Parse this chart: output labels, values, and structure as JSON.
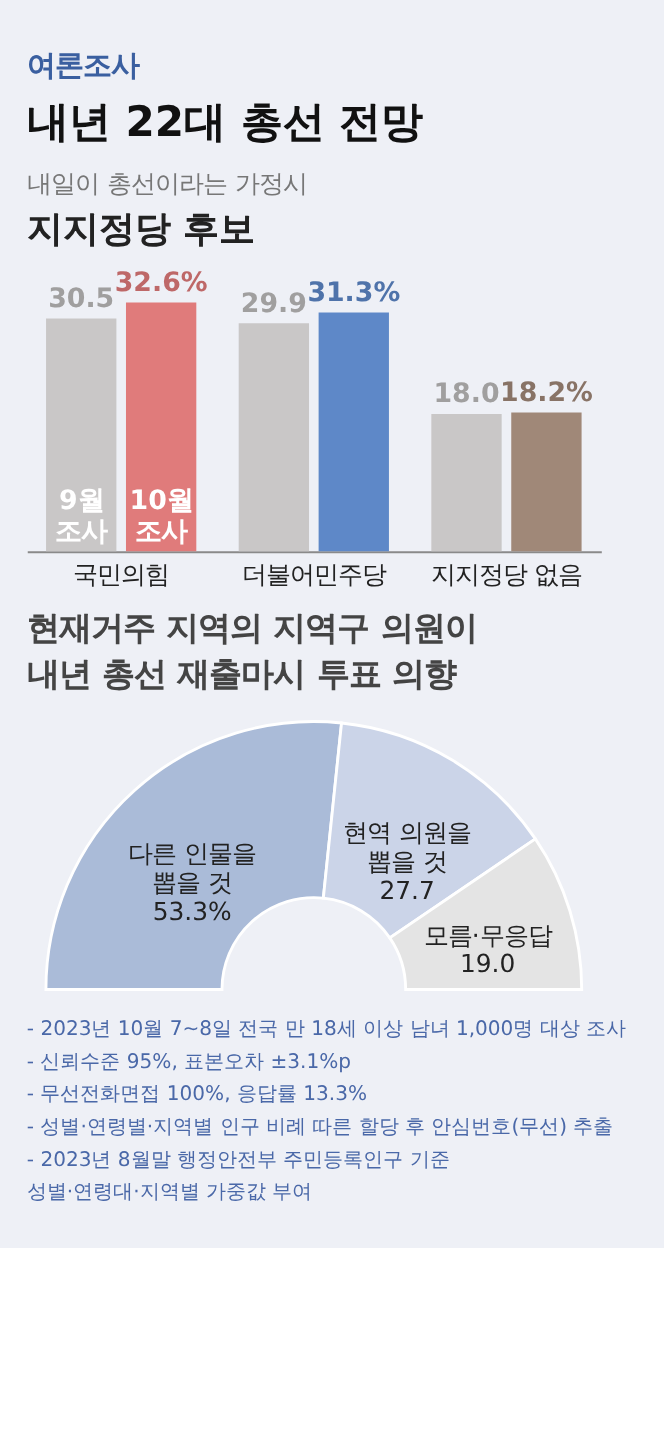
{
  "chart_data": [
    {
      "type": "other",
      "title": "내년 22대 총선 전망",
      "subtitle": "여론조사"
    },
    {
      "type": "bar",
      "title": "지지정당 후보",
      "subtitle": "내일이 총선이라는 가정시",
      "categories": [
        "국민의힘",
        "더불어민주당",
        "지지정당 없음"
      ],
      "series": [
        {
          "name": "9월 조사",
          "color": "#c9c7c7",
          "values": [
            30.5,
            29.9,
            18.0
          ],
          "value_labels": [
            "30.5",
            "29.9",
            "18.0"
          ]
        },
        {
          "name": "10월 조사",
          "colors": [
            "#e07b7b",
            "#5e88c8",
            "#a08878"
          ],
          "values": [
            32.6,
            31.3,
            18.2
          ],
          "value_labels": [
            "32.6%",
            "31.3%",
            "18.2%"
          ]
        }
      ]
    },
    {
      "type": "donut",
      "title": "현재거주 지역의 지역구 의원이 내년 총선 재출마시 투표 의향",
      "categories": [
        "다른 인물을 뽑을 것",
        "현역 의원을 뽑을 것",
        "모름·무응답"
      ],
      "values": [
        53.3,
        27.7,
        19.0
      ],
      "value_labels": [
        "53.3%",
        "27.7",
        "19.0"
      ],
      "colors": [
        "#aabbd8",
        "#cbd4e8",
        "#e4e4e4"
      ],
      "annotations": [
        "- 2023년 10월 7~8일 전국 만 18세 이상 남녀 1,000명 대상 조사",
        "- 신뢰수준 95%, 표본오차 ±3.1%p",
        "- 무선전화면접 100%, 응답률 13.3%",
        "- 성별·연령별·지역별 인구 비례 따른 할당 후 안심번호(무선) 추출",
        "- 2023년 8월말 행정안전부 주민등록인구 기준",
        "성별·연령대·지역별 가중값 부여"
      ]
    }
  ]
}
